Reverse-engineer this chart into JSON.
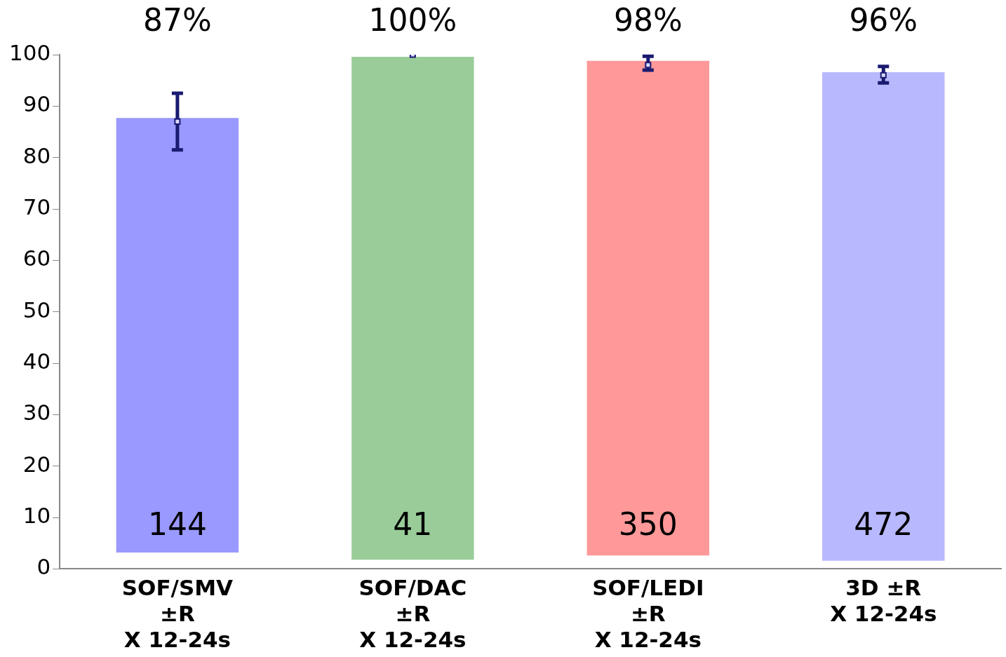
{
  "chart_data": {
    "type": "bar",
    "categories": [
      "SOF/SMV\n±R\nX 12-24s",
      "SOF/DAC\n±R\nX 12-24s",
      "SOF/LEDI\n±R\nX 12-24s",
      "3D ±R\nX 12-24s"
    ],
    "ylim": [
      0,
      100
    ],
    "yticks": [
      0,
      10,
      20,
      30,
      40,
      50,
      60,
      70,
      80,
      90,
      100
    ],
    "grid": false,
    "legend": false,
    "series": [
      {
        "colors": [
          "#9999ff",
          "#99cc99",
          "#ff9999",
          "#b8b8ff"
        ],
        "base": [
          3.2,
          1.8,
          2.6,
          1.6
        ],
        "values": [
          84.5,
          97.8,
          96.2,
          95
        ]
      },
      {
        "type": "scatter",
        "marker": "square",
        "color": "#1a1a70",
        "values": [
          87,
          100,
          98,
          96
        ],
        "errors": [
          [
            81.5,
            92.5
          ],
          null,
          [
            97,
            99.7
          ],
          [
            94.5,
            97.7
          ]
        ],
        "value_labels": [
          "87%",
          "100%",
          "98%",
          "96%"
        ]
      }
    ],
    "annotations": [
      "144",
      "41",
      "350",
      "472"
    ]
  }
}
